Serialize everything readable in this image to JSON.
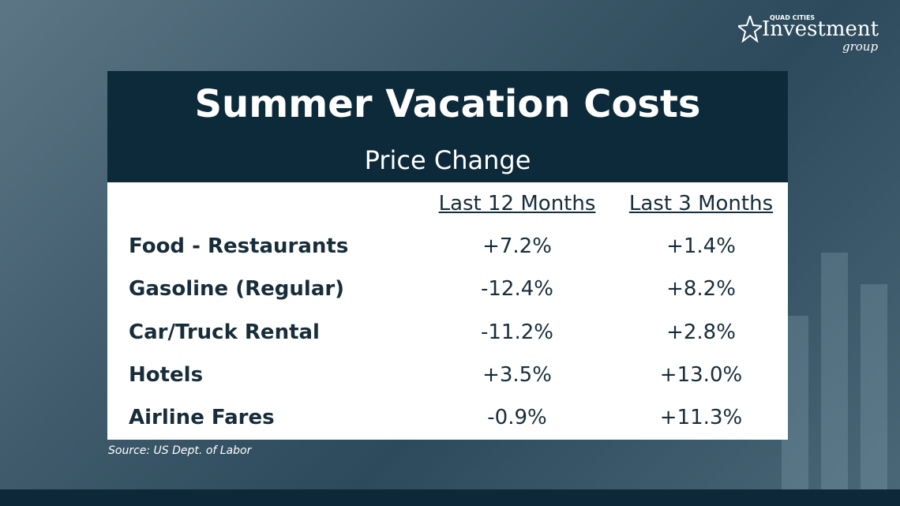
{
  "logo": {
    "top": "QUAD CITIES",
    "main": "Investment",
    "sub": "group"
  },
  "header": {
    "title": "Summer Vacation Costs",
    "subtitle": "Price Change"
  },
  "table": {
    "columns": [
      "Last 12 Months",
      "Last 3 Months"
    ],
    "rows": [
      [
        "Food - Restaurants",
        "+7.2%",
        "+1.4%"
      ],
      [
        "Gasoline (Regular)",
        "-12.4%",
        "+8.2%"
      ],
      [
        "Car/Truck Rental",
        "-11.2%",
        "+2.8%"
      ],
      [
        "Hotels",
        "+3.5%",
        "+13.0%"
      ],
      [
        "Airline Fares",
        "-0.9%",
        "+11.3%"
      ]
    ]
  },
  "source": "Source: US Dept. of Labor"
}
